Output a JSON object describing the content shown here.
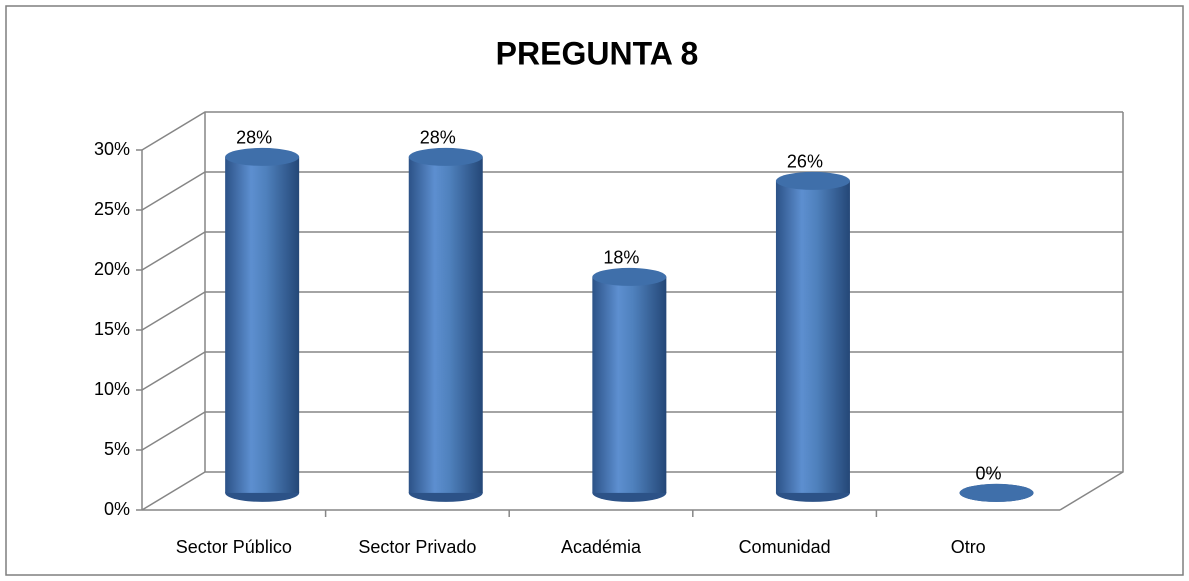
{
  "chart_data": {
    "type": "bar",
    "title": "PREGUNTA 8",
    "categories": [
      "Sector Público",
      "Sector Privado",
      "Académia",
      "Comunidad",
      "Otro"
    ],
    "values": [
      28,
      28,
      18,
      26,
      0
    ],
    "value_labels": [
      "28%",
      "28%",
      "18%",
      "26%",
      "0%"
    ],
    "color": "#4f81bd",
    "ylim": [
      0,
      30
    ],
    "yticks": [
      {
        "value": 0,
        "label": "0%"
      },
      {
        "value": 5,
        "label": "5%"
      },
      {
        "value": 10,
        "label": "10%"
      },
      {
        "value": 15,
        "label": "15%"
      },
      {
        "value": 20,
        "label": "20%"
      },
      {
        "value": 25,
        "label": "25%"
      },
      {
        "value": 30,
        "label": "30%"
      }
    ],
    "grid": true
  }
}
